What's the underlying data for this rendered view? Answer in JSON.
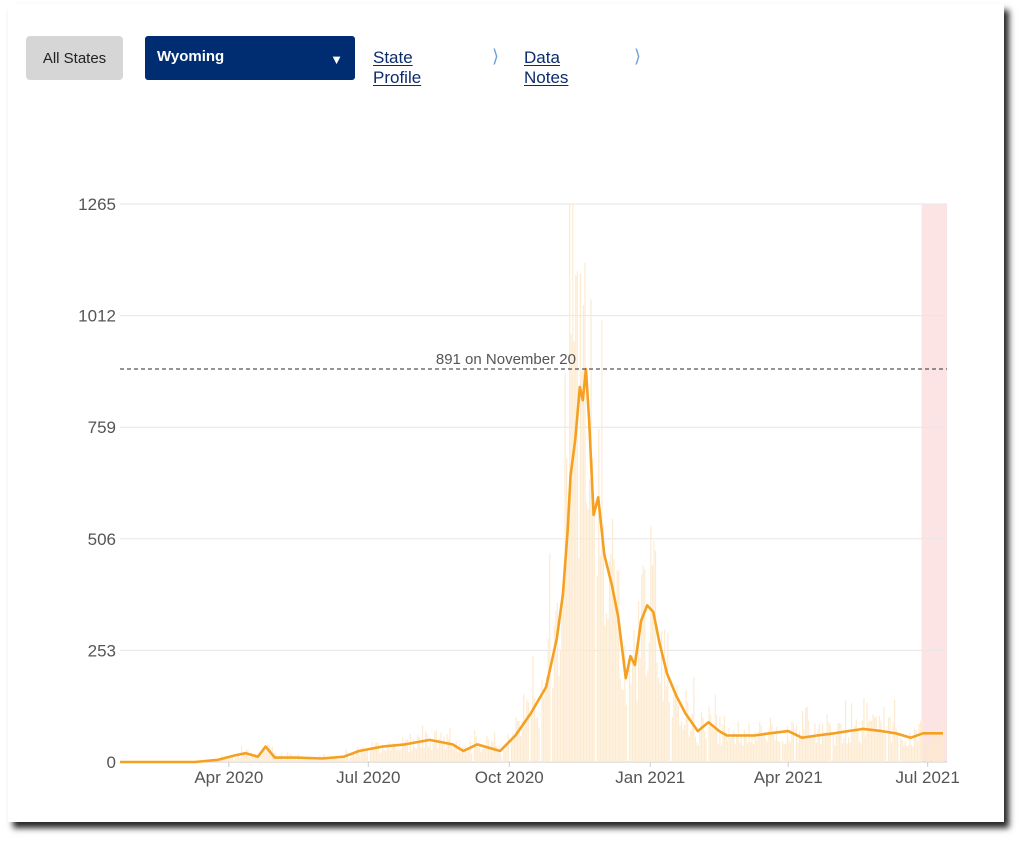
{
  "toolbar": {
    "all_states_label": "All States",
    "state_selected": "Wyoming",
    "state_profile_label": "State Profile",
    "data_notes_label": "Data Notes"
  },
  "icons": {
    "dropdown": "caret-down-icon",
    "link": "chevron-right-icon"
  },
  "colors": {
    "line": "#f5a021",
    "bars": "#fde9cc",
    "highlight": "#fde4e4",
    "select_bg": "#002d72"
  },
  "chart_data": {
    "type": "line",
    "title": "",
    "xlabel": "",
    "ylabel": "",
    "ylim": [
      0,
      1265
    ],
    "xlim": [
      "2020-01-21",
      "2021-07-11"
    ],
    "y_ticks": [
      "0",
      "253",
      "506",
      "759",
      "1012",
      "1265"
    ],
    "x_ticks": [
      {
        "label": "Apr 2020",
        "date": "2020-04-01"
      },
      {
        "label": "Jul 2020",
        "date": "2020-07-01"
      },
      {
        "label": "Oct 2020",
        "date": "2020-10-01"
      },
      {
        "label": "Jan 2021",
        "date": "2021-01-01"
      },
      {
        "label": "Apr 2021",
        "date": "2021-04-01"
      },
      {
        "label": "Jul 2021",
        "date": "2021-07-01"
      }
    ],
    "peak": {
      "value": 891,
      "date": "2020-11-20",
      "label": "891 on November 20"
    },
    "highlight_range": [
      "2021-06-27",
      "2021-07-11"
    ],
    "series": [
      {
        "points": [
          [
            "2020-01-21",
            0
          ],
          [
            "2020-03-10",
            0
          ],
          [
            "2020-03-25",
            5
          ],
          [
            "2020-04-05",
            15
          ],
          [
            "2020-04-12",
            20
          ],
          [
            "2020-04-20",
            12
          ],
          [
            "2020-04-25",
            35
          ],
          [
            "2020-05-01",
            10
          ],
          [
            "2020-05-15",
            10
          ],
          [
            "2020-06-01",
            8
          ],
          [
            "2020-06-15",
            12
          ],
          [
            "2020-06-25",
            25
          ],
          [
            "2020-07-10",
            35
          ],
          [
            "2020-07-25",
            40
          ],
          [
            "2020-08-10",
            50
          ],
          [
            "2020-08-25",
            40
          ],
          [
            "2020-09-01",
            25
          ],
          [
            "2020-09-10",
            40
          ],
          [
            "2020-09-25",
            25
          ],
          [
            "2020-10-05",
            60
          ],
          [
            "2020-10-15",
            110
          ],
          [
            "2020-10-25",
            170
          ],
          [
            "2020-11-01",
            280
          ],
          [
            "2020-11-05",
            380
          ],
          [
            "2020-11-08",
            520
          ],
          [
            "2020-11-10",
            650
          ],
          [
            "2020-11-13",
            730
          ],
          [
            "2020-11-16",
            850
          ],
          [
            "2020-11-18",
            820
          ],
          [
            "2020-11-20",
            891
          ],
          [
            "2020-11-22",
            780
          ],
          [
            "2020-11-25",
            560
          ],
          [
            "2020-11-28",
            600
          ],
          [
            "2020-12-02",
            470
          ],
          [
            "2020-12-07",
            400
          ],
          [
            "2020-12-11",
            330
          ],
          [
            "2020-12-16",
            190
          ],
          [
            "2020-12-19",
            240
          ],
          [
            "2020-12-22",
            220
          ],
          [
            "2020-12-26",
            320
          ],
          [
            "2020-12-30",
            355
          ],
          [
            "2021-01-03",
            340
          ],
          [
            "2021-01-07",
            270
          ],
          [
            "2021-01-12",
            200
          ],
          [
            "2021-01-18",
            150
          ],
          [
            "2021-01-24",
            110
          ],
          [
            "2021-02-01",
            70
          ],
          [
            "2021-02-08",
            90
          ],
          [
            "2021-02-15",
            70
          ],
          [
            "2021-02-20",
            60
          ],
          [
            "2021-03-01",
            60
          ],
          [
            "2021-03-10",
            60
          ],
          [
            "2021-03-20",
            65
          ],
          [
            "2021-04-01",
            70
          ],
          [
            "2021-04-10",
            55
          ],
          [
            "2021-04-20",
            60
          ],
          [
            "2021-05-01",
            65
          ],
          [
            "2021-05-10",
            70
          ],
          [
            "2021-05-20",
            75
          ],
          [
            "2021-06-01",
            70
          ],
          [
            "2021-06-10",
            65
          ],
          [
            "2021-06-20",
            55
          ],
          [
            "2021-06-28",
            65
          ],
          [
            "2021-07-05",
            65
          ],
          [
            "2021-07-11",
            65
          ]
        ]
      }
    ]
  }
}
